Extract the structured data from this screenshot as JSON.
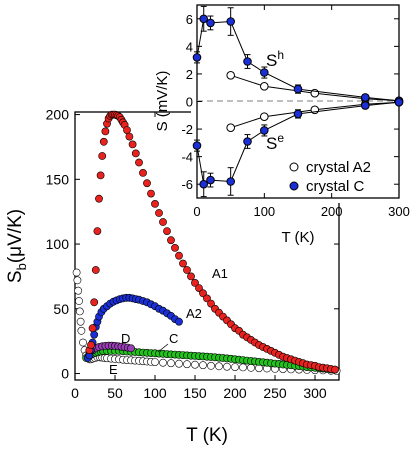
{
  "chart_data": [
    {
      "type": "scatter",
      "xlabel": "T (K)",
      "ylabel_main": "S",
      "ylabel_sub": "b",
      "ylabel_unit": "(μV/K)",
      "xlim": [
        0,
        330
      ],
      "ylim": [
        -5,
        202
      ],
      "xticks": [
        "0",
        "50",
        "100",
        "150",
        "200",
        "250",
        "300"
      ],
      "yticks": [
        "0",
        "50",
        "100",
        "150",
        "200"
      ],
      "series": [
        {
          "name": "A1",
          "color": "#e8231f",
          "x": [
            18,
            20,
            22,
            24,
            26,
            28,
            30,
            32,
            34,
            36,
            38,
            40,
            42,
            44,
            46,
            48,
            50,
            52,
            54,
            56,
            58,
            60,
            62,
            65,
            68,
            72,
            76,
            80,
            85,
            90,
            95,
            100,
            105,
            110,
            115,
            120,
            125,
            130,
            135,
            140,
            145,
            150,
            155,
            160,
            165,
            170,
            175,
            180,
            185,
            190,
            195,
            200,
            205,
            210,
            215,
            220,
            225,
            230,
            235,
            240,
            245,
            250,
            255,
            260,
            265,
            270,
            275,
            280,
            285,
            290,
            295,
            300,
            305,
            310,
            315,
            320,
            325
          ],
          "y": [
            18,
            22,
            35,
            55,
            80,
            110,
            135,
            153,
            168,
            179,
            187,
            193,
            197,
            199,
            200,
            200,
            200,
            199.5,
            199,
            198,
            196,
            194,
            192,
            188,
            183,
            177,
            170,
            163,
            155,
            147,
            139,
            131,
            124,
            117,
            110,
            103,
            97,
            91,
            85,
            80,
            75,
            70,
            66,
            62,
            58,
            54,
            50,
            47,
            44,
            41,
            38,
            35,
            33,
            30,
            28,
            26,
            24,
            22,
            20.5,
            19,
            17.5,
            16,
            14.5,
            13,
            12,
            11,
            10,
            9,
            8,
            7,
            6.5,
            6,
            5,
            4.5,
            4,
            3.5,
            3
          ]
        },
        {
          "name": "A2",
          "color": "#1b2fd6",
          "x": [
            16,
            18,
            20,
            22,
            24,
            26,
            28,
            30,
            33,
            36,
            40,
            44,
            48,
            52,
            56,
            60,
            64,
            68,
            72,
            76,
            80,
            85,
            90,
            95,
            100,
            105,
            110,
            115,
            120,
            125,
            130
          ],
          "y": [
            12,
            14,
            18,
            24,
            30,
            36,
            40,
            44,
            47.5,
            50,
            52,
            54,
            55.5,
            56.5,
            57.5,
            58,
            58.5,
            58.5,
            58,
            57.5,
            57,
            56,
            55,
            53.5,
            52,
            50,
            48.5,
            46.5,
            44.5,
            42,
            40
          ]
        },
        {
          "name": "C",
          "color": "#22c21d",
          "x": [
            14,
            17,
            20,
            23,
            26,
            29,
            32,
            35,
            40,
            45,
            50,
            55,
            60,
            65,
            70,
            75,
            80,
            85,
            90,
            95,
            100,
            105,
            110,
            115,
            120,
            125,
            130,
            135,
            140,
            145,
            150,
            155,
            160,
            165,
            170,
            175,
            180,
            185,
            190,
            195,
            200,
            205,
            210,
            215,
            220,
            225,
            230,
            235,
            240,
            245,
            250,
            255,
            260,
            265,
            270,
            275,
            280,
            285,
            290,
            295,
            300,
            305,
            310,
            315,
            320,
            325
          ],
          "y": [
            12,
            13.5,
            14.5,
            15.5,
            16,
            16.5,
            17,
            17.5,
            17.5,
            17.5,
            17.5,
            17.5,
            17.3,
            17,
            16.8,
            16.6,
            16.4,
            16.2,
            16,
            15.8,
            15.6,
            15.4,
            15.2,
            15,
            14.8,
            14.6,
            14.4,
            14.2,
            14,
            13.8,
            13.6,
            13.4,
            13.2,
            13,
            12.8,
            12.5,
            12.2,
            12,
            11.7,
            11.4,
            11,
            10.7,
            10.4,
            10,
            9.7,
            9.4,
            9,
            8.7,
            8.4,
            8,
            7.7,
            7.4,
            7,
            6.7,
            6.4,
            6,
            5.7,
            5.4,
            5,
            4.7,
            4.4,
            4.1,
            3.8,
            3.5,
            3.2,
            3
          ]
        },
        {
          "name": "D",
          "color": "#9a3fb6",
          "x": [
            18,
            22,
            26,
            30,
            34,
            38,
            42,
            46,
            50,
            54,
            58,
            62,
            66,
            70
          ],
          "y": [
            16,
            18,
            19.5,
            20.5,
            21,
            21.3,
            21.5,
            21.5,
            21.3,
            21,
            20.7,
            20.3,
            20,
            19.5
          ]
        },
        {
          "name": "E",
          "color": "#ffffff",
          "x": [
            2,
            3,
            4,
            5,
            6,
            7,
            8,
            10,
            12,
            14,
            16,
            18,
            20,
            22,
            25,
            28,
            31,
            34,
            37,
            40,
            45,
            50,
            55,
            60,
            65,
            70,
            75,
            80,
            85,
            90,
            95,
            100,
            110,
            120,
            130,
            140,
            150,
            160,
            170,
            180,
            190,
            200,
            210,
            220,
            230,
            240,
            250,
            260,
            270,
            280,
            290,
            300,
            310,
            320,
            327
          ],
          "y": [
            78,
            72,
            64,
            56,
            48,
            40,
            33,
            24,
            18,
            14,
            12,
            11,
            11,
            11.5,
            12,
            12.5,
            12.5,
            12.3,
            12,
            11.8,
            11.5,
            11.2,
            11,
            10.7,
            10.4,
            10.2,
            10,
            9.8,
            9.5,
            9.3,
            9,
            8.8,
            8.4,
            8,
            7.6,
            7.2,
            6.8,
            6.4,
            6,
            5.6,
            5.3,
            5,
            4.7,
            4.4,
            4.1,
            3.9,
            3.6,
            3.4,
            3.2,
            3,
            2.8,
            2.6,
            2.4,
            2.2,
            2
          ]
        }
      ],
      "annotations": [
        "A1",
        "A2",
        "C",
        "D",
        "E"
      ]
    },
    {
      "type": "scatter",
      "xlabel": "T (K)",
      "ylabel": "S (mV/K)",
      "xlim": [
        0,
        300
      ],
      "ylim": [
        -7,
        7
      ],
      "xticks": [
        "0",
        "100",
        "200",
        "300"
      ],
      "yticks": [
        "6",
        "4",
        "2",
        "0",
        "-2",
        "-4",
        "-6"
      ],
      "reference_line": "y = 0 (dashed)",
      "labels": {
        "hole_main": "S",
        "hole_sup": "h",
        "electron_main": "S",
        "electron_sup": "e"
      },
      "legend": [
        "crystal A2",
        "crystal C"
      ],
      "legend_position": "bottom-right",
      "series": [
        {
          "name": "crystal A2",
          "color": "#ffffff",
          "x": [
            50,
            100,
            175,
            250,
            300
          ],
          "y_h": [
            1.9,
            1.1,
            0.6,
            0.2,
            0.05
          ],
          "y_e": [
            -1.9,
            -1.1,
            -0.6,
            -0.2,
            -0.05
          ]
        },
        {
          "name": "crystal C",
          "color": "#1b2fd6",
          "x": [
            0,
            10,
            20,
            50,
            75,
            100,
            150,
            250,
            300
          ],
          "y_h": [
            3.2,
            6.0,
            5.7,
            5.8,
            2.9,
            2.1,
            0.9,
            0.3,
            0.05
          ],
          "y_e": [
            -3.2,
            -6.0,
            -5.7,
            -5.8,
            -2.9,
            -2.1,
            -0.9,
            -0.3,
            -0.05
          ],
          "err": [
            0.4,
            0.9,
            0.5,
            1.0,
            0.5,
            0.4,
            0.3,
            0.2,
            0.2
          ]
        }
      ]
    }
  ]
}
